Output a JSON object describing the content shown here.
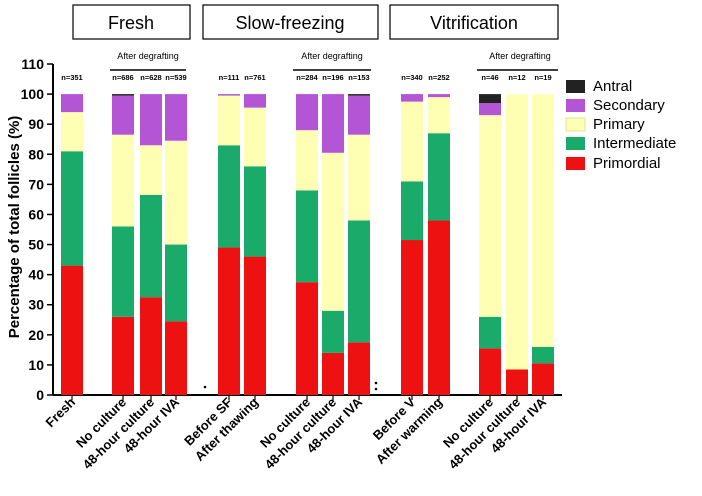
{
  "chart_data": {
    "type": "bar",
    "stacked": true,
    "ylabel": "Percentage of total follicles (%)",
    "ylim": [
      0,
      110
    ],
    "yticks": [
      0,
      10,
      20,
      30,
      40,
      50,
      60,
      70,
      80,
      90,
      100,
      110
    ],
    "groups": [
      {
        "title": "Fresh"
      },
      {
        "title": "Slow-freezing"
      },
      {
        "title": "Vitrification"
      }
    ],
    "after_degrafting_label": "After degrafting",
    "legend": [
      {
        "name": "Antral",
        "color": "#222222"
      },
      {
        "name": "Secondary",
        "color": "#b455d6"
      },
      {
        "name": "Primary",
        "color": "#ffffb3"
      },
      {
        "name": "Intermediate",
        "color": "#1aaa6a"
      },
      {
        "name": "Primordial",
        "color": "#ee1111"
      }
    ],
    "categories": [
      "Fresh",
      "No culture",
      "48-hour culture",
      "48-hour IVA",
      "Before SF",
      "After thawing",
      "No culture",
      "48-hour culture",
      "48-hour IVA",
      "Before V",
      "After warming",
      "No culture",
      "48-hour culture",
      "48-hour IVA"
    ],
    "n_labels": [
      "n=351",
      "n=686",
      "n=628",
      "n=539",
      "n=111",
      "n=761",
      "n=284",
      "n=196",
      "n=153",
      "n=340",
      "n=252",
      "n=46",
      "n=12",
      "n=19"
    ],
    "series": [
      {
        "name": "Primordial",
        "values": [
          43,
          26,
          32.5,
          24.5,
          49,
          46,
          37.5,
          14,
          17.5,
          51.5,
          58,
          15.5,
          8.5,
          10.5
        ]
      },
      {
        "name": "Intermediate",
        "values": [
          38,
          30,
          34,
          25.5,
          34,
          30,
          30.5,
          14,
          40.5,
          19.5,
          29,
          10.5,
          0,
          5.5
        ]
      },
      {
        "name": "Primary",
        "values": [
          13,
          30.5,
          16.5,
          34.5,
          16.5,
          19.5,
          20,
          52.5,
          28.5,
          26.5,
          12,
          67,
          91.5,
          84
        ]
      },
      {
        "name": "Secondary",
        "values": [
          6,
          13,
          17,
          15.5,
          0.5,
          4.5,
          12,
          19.5,
          13,
          2.5,
          1,
          4,
          0,
          0
        ]
      },
      {
        "name": "Antral",
        "values": [
          0,
          0.5,
          0,
          0,
          0,
          0,
          0,
          0,
          0.5,
          0,
          0,
          3,
          0,
          0
        ]
      }
    ]
  }
}
